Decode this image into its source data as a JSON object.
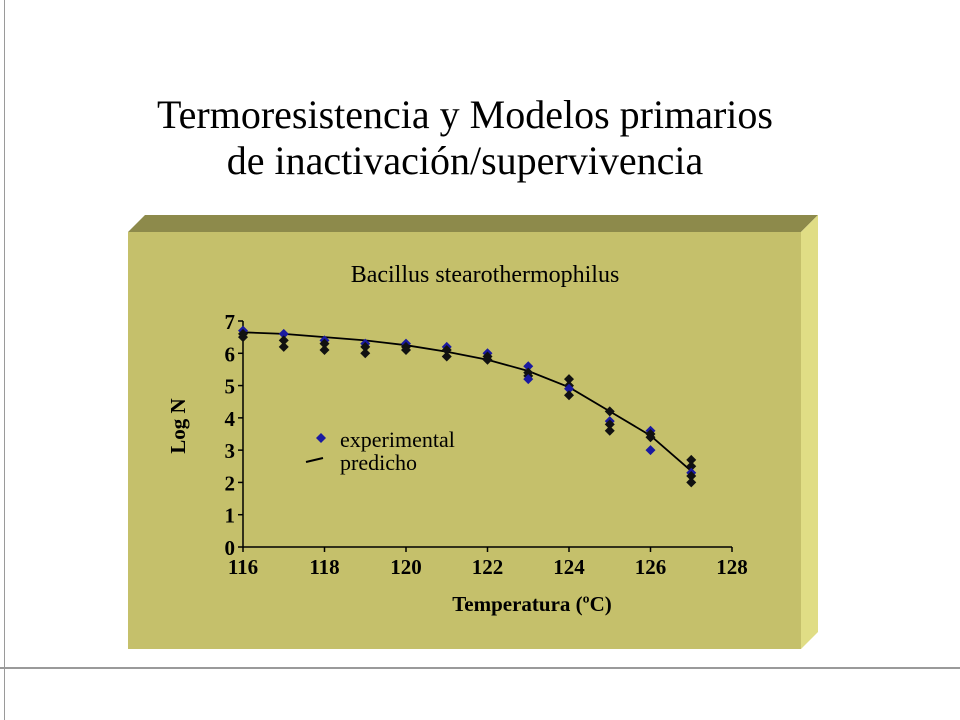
{
  "slide": {
    "title_line1": "Termoresistencia y Modelos primarios",
    "title_line2": "de inactivación/supervivencia"
  },
  "colors": {
    "panel_face": "#c5c06b",
    "panel_top": "#8d8a4b",
    "panel_side": "#e0dd85",
    "experimental_marker": "#1a1aa0",
    "experimental_dark": "#111111",
    "line": "#000000"
  },
  "chart_data": {
    "type": "scatter",
    "title": "Bacillus stearothermophilus",
    "xlabel": "Temperatura (ºC)",
    "ylabel": "Log N",
    "xlim": [
      116,
      128
    ],
    "ylim": [
      0,
      7
    ],
    "xticks": [
      116,
      118,
      120,
      122,
      124,
      126,
      128
    ],
    "yticks": [
      0,
      1,
      2,
      3,
      4,
      5,
      6,
      7
    ],
    "legend_position": "center-left",
    "series": [
      {
        "name": "experimental",
        "marker": "diamond",
        "points": [
          [
            116,
            6.7
          ],
          [
            116,
            6.6
          ],
          [
            116,
            6.5
          ],
          [
            117,
            6.6
          ],
          [
            117,
            6.4
          ],
          [
            117,
            6.2
          ],
          [
            118,
            6.4
          ],
          [
            118,
            6.3
          ],
          [
            118,
            6.1
          ],
          [
            119,
            6.3
          ],
          [
            119,
            6.2
          ],
          [
            119,
            6.0
          ],
          [
            120,
            6.3
          ],
          [
            120,
            6.2
          ],
          [
            120,
            6.1
          ],
          [
            121,
            6.2
          ],
          [
            121,
            6.1
          ],
          [
            121,
            5.9
          ],
          [
            122,
            6.0
          ],
          [
            122,
            5.9
          ],
          [
            122,
            5.8
          ],
          [
            123,
            5.6
          ],
          [
            123,
            5.4
          ],
          [
            123,
            5.3
          ],
          [
            123,
            5.2
          ],
          [
            124,
            5.2
          ],
          [
            124,
            5.0
          ],
          [
            124,
            4.9
          ],
          [
            124,
            4.7
          ],
          [
            125,
            4.2
          ],
          [
            125,
            3.9
          ],
          [
            125,
            3.8
          ],
          [
            125,
            3.6
          ],
          [
            126,
            3.6
          ],
          [
            126,
            3.5
          ],
          [
            126,
            3.4
          ],
          [
            126,
            3.0
          ],
          [
            127,
            2.7
          ],
          [
            127,
            2.5
          ],
          [
            127,
            2.3
          ],
          [
            127,
            2.2
          ],
          [
            127,
            2.0
          ]
        ]
      },
      {
        "name": "predicho",
        "marker": "line",
        "points": [
          [
            116,
            6.65
          ],
          [
            117,
            6.6
          ],
          [
            118,
            6.5
          ],
          [
            119,
            6.4
          ],
          [
            120,
            6.25
          ],
          [
            121,
            6.05
          ],
          [
            122,
            5.8
          ],
          [
            123,
            5.45
          ],
          [
            124,
            4.95
          ],
          [
            125,
            4.2
          ],
          [
            126,
            3.45
          ],
          [
            127,
            2.35
          ]
        ]
      }
    ]
  }
}
